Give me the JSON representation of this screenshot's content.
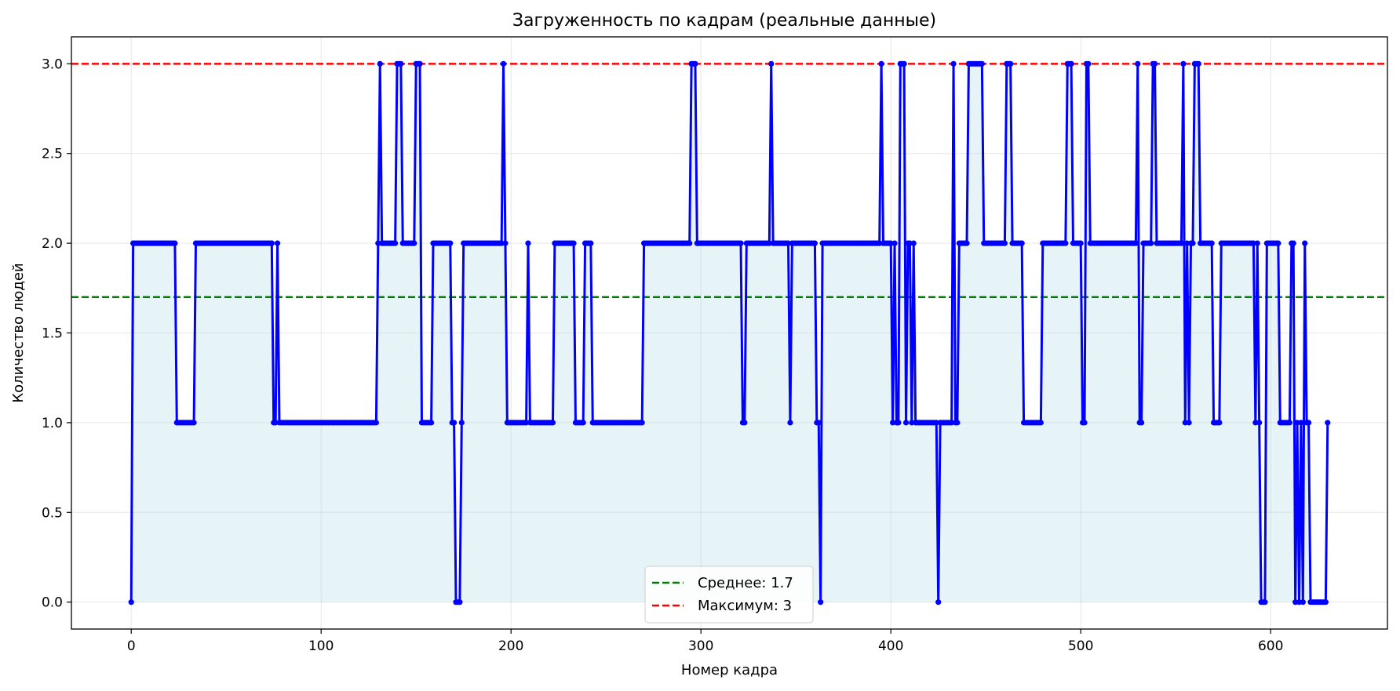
{
  "chart_data": {
    "type": "line",
    "title": "Загруженность по кадрам (реальные данные)",
    "xlabel": "Номер кадра",
    "ylabel": "Количество людей",
    "xlim": [
      -31.5,
      661.5
    ],
    "ylim": [
      -0.15,
      3.15
    ],
    "xticks": [
      0,
      100,
      200,
      300,
      400,
      500,
      600
    ],
    "xtick_labels": [
      "0",
      "100",
      "200",
      "300",
      "400",
      "500",
      "600"
    ],
    "yticks": [
      0.0,
      0.5,
      1.0,
      1.5,
      2.0,
      2.5,
      3.0
    ],
    "ytick_labels": [
      "0.0",
      "0.5",
      "1.0",
      "1.5",
      "2.0",
      "2.5",
      "3.0"
    ],
    "grid": true,
    "legend_position": "bottom-center",
    "series": [
      {
        "type": "line-markers-fill",
        "color": "#0000ff",
        "fill_color": "#add8e6",
        "runs": [
          [
            0,
            1,
            0
          ],
          [
            1,
            24,
            2
          ],
          [
            24,
            34,
            1
          ],
          [
            34,
            75,
            2
          ],
          [
            75,
            77,
            1
          ],
          [
            77,
            78,
            2
          ],
          [
            78,
            130,
            1
          ],
          [
            130,
            131,
            2
          ],
          [
            131,
            132,
            3
          ],
          [
            132,
            140,
            2
          ],
          [
            140,
            143,
            3
          ],
          [
            143,
            150,
            2
          ],
          [
            150,
            153,
            3
          ],
          [
            153,
            159,
            1
          ],
          [
            159,
            169,
            2
          ],
          [
            169,
            171,
            1
          ],
          [
            171,
            174,
            0
          ],
          [
            174,
            175,
            1
          ],
          [
            175,
            196,
            2
          ],
          [
            196,
            197,
            3
          ],
          [
            197,
            198,
            2
          ],
          [
            198,
            209,
            1
          ],
          [
            209,
            210,
            2
          ],
          [
            210,
            223,
            1
          ],
          [
            223,
            234,
            2
          ],
          [
            234,
            239,
            1
          ],
          [
            239,
            243,
            2
          ],
          [
            243,
            270,
            1
          ],
          [
            270,
            295,
            2
          ],
          [
            295,
            298,
            3
          ],
          [
            298,
            322,
            2
          ],
          [
            322,
            324,
            1
          ],
          [
            324,
            337,
            2
          ],
          [
            337,
            338,
            3
          ],
          [
            338,
            347,
            2
          ],
          [
            347,
            348,
            1
          ],
          [
            348,
            361,
            2
          ],
          [
            361,
            363,
            1
          ],
          [
            363,
            364,
            0
          ],
          [
            364,
            395,
            2
          ],
          [
            395,
            396,
            3
          ],
          [
            396,
            401,
            2
          ],
          [
            401,
            402,
            1
          ],
          [
            402,
            403,
            2
          ],
          [
            403,
            405,
            1
          ],
          [
            405,
            408,
            3
          ],
          [
            408,
            409,
            1
          ],
          [
            409,
            411,
            2
          ],
          [
            411,
            412,
            1
          ],
          [
            412,
            413,
            2
          ],
          [
            413,
            425,
            1
          ],
          [
            425,
            426,
            0
          ],
          [
            426,
            433,
            1
          ],
          [
            433,
            434,
            3
          ],
          [
            434,
            436,
            1
          ],
          [
            436,
            441,
            2
          ],
          [
            441,
            449,
            3
          ],
          [
            449,
            461,
            2
          ],
          [
            461,
            464,
            3
          ],
          [
            464,
            470,
            2
          ],
          [
            470,
            480,
            1
          ],
          [
            480,
            493,
            2
          ],
          [
            493,
            496,
            3
          ],
          [
            496,
            501,
            2
          ],
          [
            501,
            503,
            1
          ],
          [
            503,
            505,
            3
          ],
          [
            505,
            530,
            2
          ],
          [
            530,
            531,
            3
          ],
          [
            531,
            533,
            1
          ],
          [
            533,
            538,
            2
          ],
          [
            538,
            540,
            3
          ],
          [
            540,
            554,
            2
          ],
          [
            554,
            555,
            3
          ],
          [
            555,
            556,
            1
          ],
          [
            556,
            557,
            2
          ],
          [
            557,
            558,
            1
          ],
          [
            558,
            560,
            2
          ],
          [
            560,
            563,
            3
          ],
          [
            563,
            570,
            2
          ],
          [
            570,
            574,
            1
          ],
          [
            574,
            592,
            2
          ],
          [
            592,
            593,
            1
          ],
          [
            593,
            594,
            2
          ],
          [
            594,
            595,
            1
          ],
          [
            595,
            598,
            0
          ],
          [
            598,
            605,
            2
          ],
          [
            605,
            611,
            1
          ],
          [
            611,
            613,
            2
          ],
          [
            613,
            614,
            0
          ],
          [
            614,
            615,
            1
          ],
          [
            615,
            616,
            0
          ],
          [
            616,
            617,
            1
          ],
          [
            617,
            618,
            0
          ],
          [
            618,
            619,
            2
          ],
          [
            619,
            621,
            1
          ],
          [
            621,
            630,
            0
          ],
          [
            630,
            631,
            1
          ]
        ]
      }
    ],
    "reference_lines": [
      {
        "name": "Среднее: 1.7",
        "y": 1.7,
        "color": "#008000"
      },
      {
        "name": "Максимум: 3",
        "y": 3,
        "color": "#ff0000"
      }
    ]
  }
}
